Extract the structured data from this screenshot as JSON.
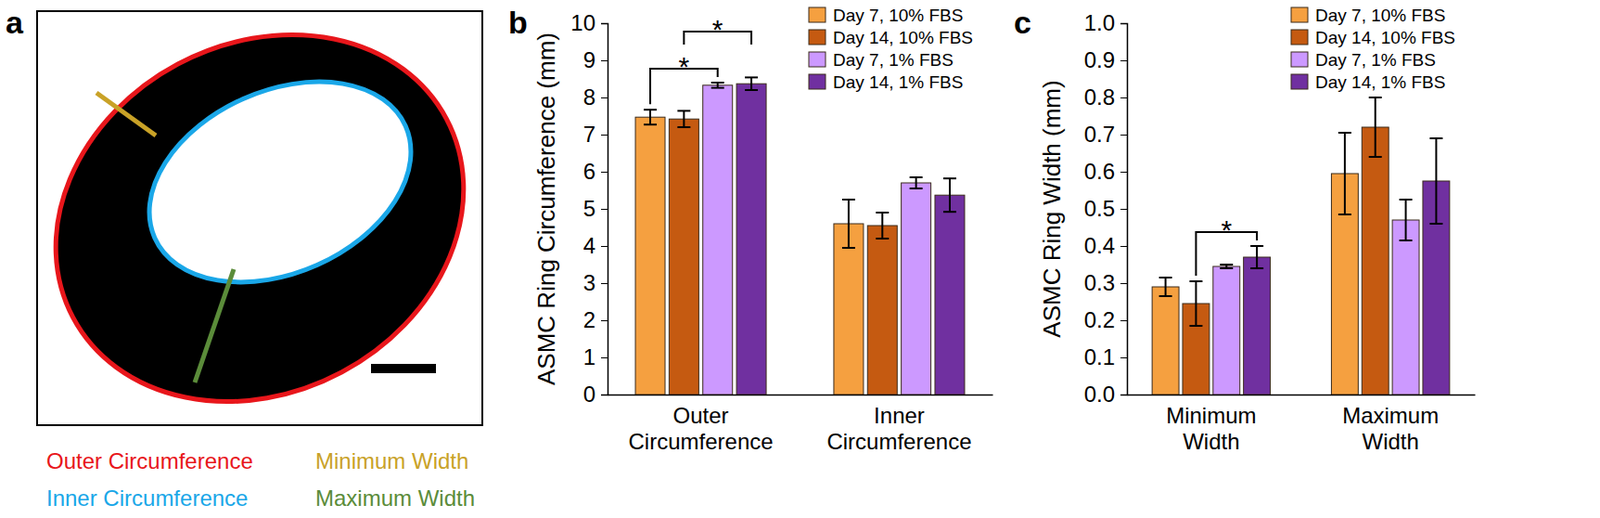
{
  "diagram": {
    "panel_label": "a",
    "labels": [
      {
        "text": "Outer Circumference",
        "color": "#e8161b"
      },
      {
        "text": "Minimum Width",
        "color": "#c9a227"
      },
      {
        "text": "Inner Circumference",
        "color": "#1aa7e8"
      },
      {
        "text": "Maximum Width",
        "color": "#5b8c3a"
      }
    ]
  },
  "chart_data": [
    {
      "type": "bar",
      "panel_label": "b",
      "y_label": "ASMC Ring Circumference (mm)",
      "categories": [
        "Outer Circumference",
        "Inner Circumference"
      ],
      "series": [
        {
          "name": "Day 7, 10% FBS",
          "color": "#f5a040",
          "values": [
            7.47,
            4.6
          ],
          "errors": [
            0.2,
            0.65
          ]
        },
        {
          "name": "Day 14, 10% FBS",
          "color": "#c55a11",
          "values": [
            7.42,
            4.55
          ],
          "errors": [
            0.22,
            0.35
          ]
        },
        {
          "name": "Day 7, 1% FBS",
          "color": "#cc99ff",
          "values": [
            8.33,
            5.7
          ],
          "errors": [
            0.07,
            0.15
          ]
        },
        {
          "name": "Day 14, 1% FBS",
          "color": "#7030a0",
          "values": [
            8.37,
            5.37
          ],
          "errors": [
            0.17,
            0.45
          ]
        }
      ],
      "ylim": [
        0,
        10
      ],
      "yticks": [
        0,
        1,
        2,
        3,
        4,
        5,
        6,
        7,
        8,
        9,
        10
      ],
      "grid": false,
      "legend": "upper right",
      "annotations": [
        {
          "text": "*",
          "category": 0,
          "series": [
            0,
            2
          ]
        },
        {
          "text": "*",
          "category": 0,
          "series": [
            1,
            3
          ]
        }
      ]
    },
    {
      "type": "bar",
      "panel_label": "c",
      "y_label": "ASMC Ring Width (mm)",
      "categories": [
        "Minimum Width",
        "Maximum Width"
      ],
      "series": [
        {
          "name": "Day 7, 10% FBS",
          "color": "#f5a040",
          "values": [
            0.29,
            0.595
          ],
          "errors": [
            0.025,
            0.11
          ]
        },
        {
          "name": "Day 14, 10% FBS",
          "color": "#c55a11",
          "values": [
            0.245,
            0.72
          ],
          "errors": [
            0.06,
            0.08
          ]
        },
        {
          "name": "Day 7, 1% FBS",
          "color": "#cc99ff",
          "values": [
            0.345,
            0.47
          ],
          "errors": [
            0.005,
            0.055
          ]
        },
        {
          "name": "Day 14, 1% FBS",
          "color": "#7030a0",
          "values": [
            0.37,
            0.575
          ],
          "errors": [
            0.03,
            0.115
          ]
        }
      ],
      "ylim": [
        0,
        1
      ],
      "yticks": [
        {
          "value": 0,
          "label": "0.0"
        },
        0.1,
        0.2,
        0.3,
        0.4,
        0.5,
        0.6,
        0.7,
        0.8,
        0.9,
        {
          "value": 1,
          "label": "1.0"
        }
      ],
      "grid": false,
      "legend": "upper right",
      "annotations": [
        {
          "text": "*",
          "category": 0,
          "series": [
            1,
            3
          ]
        }
      ]
    }
  ]
}
